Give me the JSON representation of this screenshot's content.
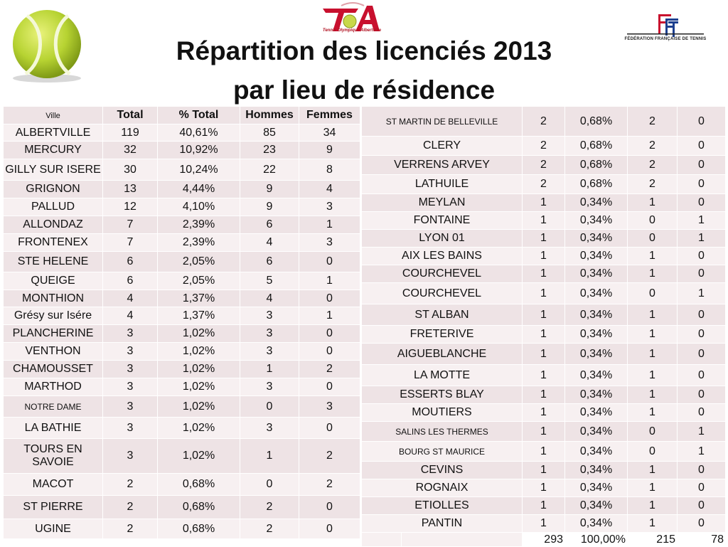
{
  "title_line1": "Répartition des licenciés 2013",
  "title_line2": "par lieu de résidence",
  "logos": {
    "club_caption": "Tennis Olympique Albertville",
    "fft_caption": "FÉDÉRATION FRANÇAISE DE TENNIS",
    "colors": {
      "ball": "#b7d332",
      "club_red": "#c8102e",
      "fft_blue": "#1d3f8f"
    }
  },
  "headers": {
    "ville": "Ville",
    "total": "Total",
    "pct": "% Total",
    "hommes": "Hommes",
    "femmes": "Femmes"
  },
  "left_rows": [
    {
      "ville": "ALBERTVILLE",
      "total": "119",
      "pct": "40,61%",
      "hommes": "85",
      "femmes": "34"
    },
    {
      "ville": "MERCURY",
      "total": "32",
      "pct": "10,92%",
      "hommes": "23",
      "femmes": "9"
    },
    {
      "ville": "GILLY SUR ISERE",
      "total": "30",
      "pct": "10,24%",
      "hommes": "22",
      "femmes": "8"
    },
    {
      "ville": "GRIGNON",
      "total": "13",
      "pct": "4,44%",
      "hommes": "9",
      "femmes": "4"
    },
    {
      "ville": "PALLUD",
      "total": "12",
      "pct": "4,10%",
      "hommes": "9",
      "femmes": "3"
    },
    {
      "ville": "ALLONDAZ",
      "total": "7",
      "pct": "2,39%",
      "hommes": "6",
      "femmes": "1"
    },
    {
      "ville": "FRONTENEX",
      "total": "7",
      "pct": "2,39%",
      "hommes": "4",
      "femmes": "3"
    },
    {
      "ville": "STE HELENE",
      "total": "6",
      "pct": "2,05%",
      "hommes": "6",
      "femmes": "0"
    },
    {
      "ville": "QUEIGE",
      "total": "6",
      "pct": "2,05%",
      "hommes": "5",
      "femmes": "1"
    },
    {
      "ville": "MONTHION",
      "total": "4",
      "pct": "1,37%",
      "hommes": "4",
      "femmes": "0"
    },
    {
      "ville": "Grésy sur Isére",
      "total": "4",
      "pct": "1,37%",
      "hommes": "3",
      "femmes": "1"
    },
    {
      "ville": "PLANCHERINE",
      "total": "3",
      "pct": "1,02%",
      "hommes": "3",
      "femmes": "0"
    },
    {
      "ville": "VENTHON",
      "total": "3",
      "pct": "1,02%",
      "hommes": "3",
      "femmes": "0"
    },
    {
      "ville": "CHAMOUSSET",
      "total": "3",
      "pct": "1,02%",
      "hommes": "1",
      "femmes": "2"
    },
    {
      "ville": "MARTHOD",
      "total": "3",
      "pct": "1,02%",
      "hommes": "3",
      "femmes": "0"
    },
    {
      "ville": "NOTRE DAME",
      "total": "3",
      "pct": "1,02%",
      "hommes": "0",
      "femmes": "3"
    },
    {
      "ville": "LA BATHIE",
      "total": "3",
      "pct": "1,02%",
      "hommes": "3",
      "femmes": "0"
    },
    {
      "ville": "TOURS EN SAVOIE",
      "total": "3",
      "pct": "1,02%",
      "hommes": "1",
      "femmes": "2"
    },
    {
      "ville": "MACOT",
      "total": "2",
      "pct": "0,68%",
      "hommes": "0",
      "femmes": "2"
    },
    {
      "ville": "ST PIERRE",
      "total": "2",
      "pct": "0,68%",
      "hommes": "2",
      "femmes": "0"
    },
    {
      "ville": "UGINE",
      "total": "2",
      "pct": "0,68%",
      "hommes": "2",
      "femmes": "0"
    }
  ],
  "right_rows": [
    {
      "ville": "ST MARTIN DE BELLEVILLE",
      "total": "2",
      "pct": "0,68%",
      "hommes": "2",
      "femmes": "0"
    },
    {
      "ville": "CLERY",
      "total": "2",
      "pct": "0,68%",
      "hommes": "2",
      "femmes": "0"
    },
    {
      "ville": "VERRENS ARVEY",
      "total": "2",
      "pct": "0,68%",
      "hommes": "2",
      "femmes": "0"
    },
    {
      "ville": "LATHUILE",
      "total": "2",
      "pct": "0,68%",
      "hommes": "2",
      "femmes": "0"
    },
    {
      "ville": "MEYLAN",
      "total": "1",
      "pct": "0,34%",
      "hommes": "1",
      "femmes": "0"
    },
    {
      "ville": "FONTAINE",
      "total": "1",
      "pct": "0,34%",
      "hommes": "0",
      "femmes": "1"
    },
    {
      "ville": "LYON 01",
      "total": "1",
      "pct": "0,34%",
      "hommes": "0",
      "femmes": "1"
    },
    {
      "ville": "AIX LES BAINS",
      "total": "1",
      "pct": "0,34%",
      "hommes": "1",
      "femmes": "0"
    },
    {
      "ville": "COURCHEVEL",
      "total": "1",
      "pct": "0,34%",
      "hommes": "1",
      "femmes": "0"
    },
    {
      "ville": "COURCHEVEL",
      "total": "1",
      "pct": "0,34%",
      "hommes": "0",
      "femmes": "1"
    },
    {
      "ville": "ST ALBAN",
      "total": "1",
      "pct": "0,34%",
      "hommes": "1",
      "femmes": "0"
    },
    {
      "ville": "FRETERIVE",
      "total": "1",
      "pct": "0,34%",
      "hommes": "1",
      "femmes": "0"
    },
    {
      "ville": "AIGUEBLANCHE",
      "total": "1",
      "pct": "0,34%",
      "hommes": "1",
      "femmes": "0"
    },
    {
      "ville": "LA MOTTE",
      "total": "1",
      "pct": "0,34%",
      "hommes": "1",
      "femmes": "0"
    },
    {
      "ville": "ESSERTS BLAY",
      "total": "1",
      "pct": "0,34%",
      "hommes": "1",
      "femmes": "0"
    },
    {
      "ville": "MOUTIERS",
      "total": "1",
      "pct": "0,34%",
      "hommes": "1",
      "femmes": "0"
    },
    {
      "ville": "SALINS LES THERMES",
      "total": "1",
      "pct": "0,34%",
      "hommes": "0",
      "femmes": "1"
    },
    {
      "ville": "BOURG ST MAURICE",
      "total": "1",
      "pct": "0,34%",
      "hommes": "0",
      "femmes": "1"
    },
    {
      "ville": "CEVINS",
      "total": "1",
      "pct": "0,34%",
      "hommes": "1",
      "femmes": "0"
    },
    {
      "ville": "ROGNAIX",
      "total": "1",
      "pct": "0,34%",
      "hommes": "1",
      "femmes": "0"
    },
    {
      "ville": "ETIOLLES",
      "total": "1",
      "pct": "0,34%",
      "hommes": "1",
      "femmes": "0"
    },
    {
      "ville": "PANTIN",
      "total": "1",
      "pct": "0,34%",
      "hommes": "1",
      "femmes": "0"
    }
  ],
  "totals": {
    "total": "293",
    "pct": "100,00%",
    "hommes": "215",
    "femmes": "78"
  }
}
